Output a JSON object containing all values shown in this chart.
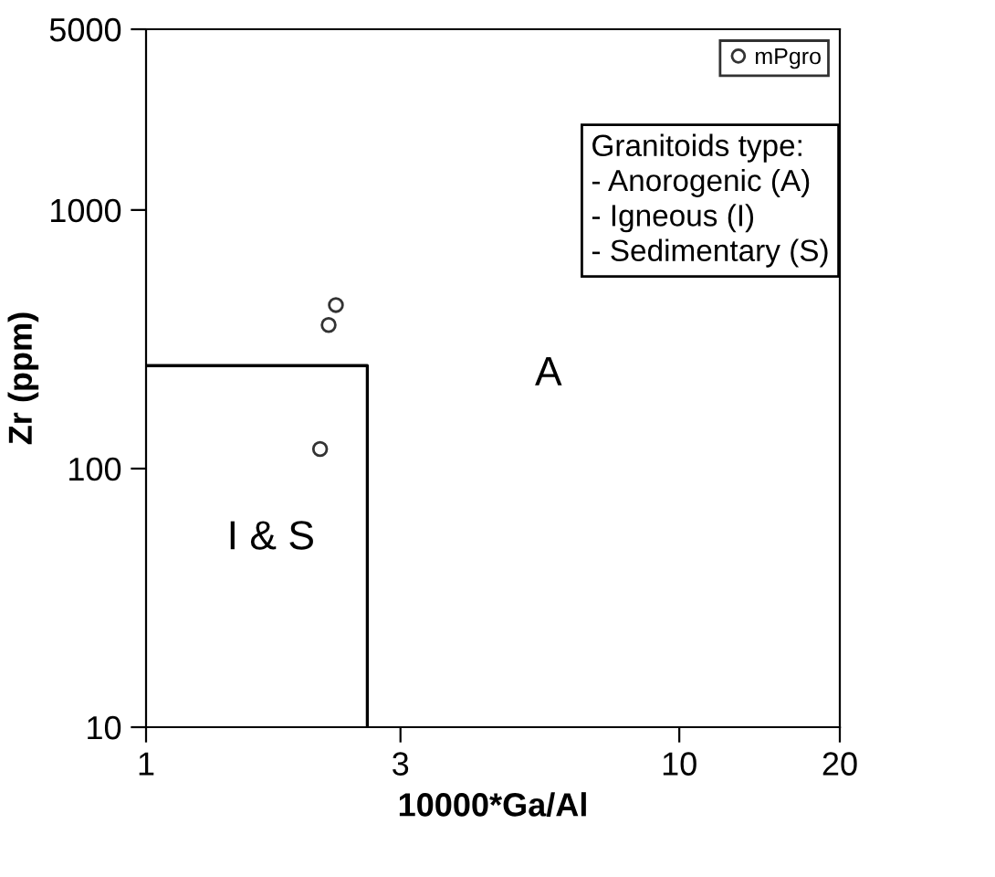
{
  "chart_data": {
    "type": "scatter",
    "xlabel": "10000*Ga/Al",
    "ylabel": "Zr (ppm)",
    "log": "xy",
    "xlim": [
      1,
      20
    ],
    "ylim": [
      10,
      5000
    ],
    "xticks": [
      1,
      3,
      10,
      20
    ],
    "yticks": [
      10,
      100,
      1000,
      5000
    ],
    "grid": false,
    "legend": "top right",
    "series": [
      {
        "name": "mPgro",
        "color": "#333333",
        "marker": "circle",
        "x": [
          2.12,
          2.2,
          2.27
        ],
        "values": [
          119,
          359,
          429
        ]
      },
      {
        "type": "line",
        "color": "#000000",
        "marker": "none",
        "x": [
          1,
          2.6,
          2.6
        ],
        "values": [
          250,
          250,
          10
        ]
      }
    ],
    "annotations": [
      "A",
      "I & S",
      "Granitoids type:\n- Anorogenic (A)\n- Igneous (I)\n- Sedimentary (S)"
    ]
  }
}
